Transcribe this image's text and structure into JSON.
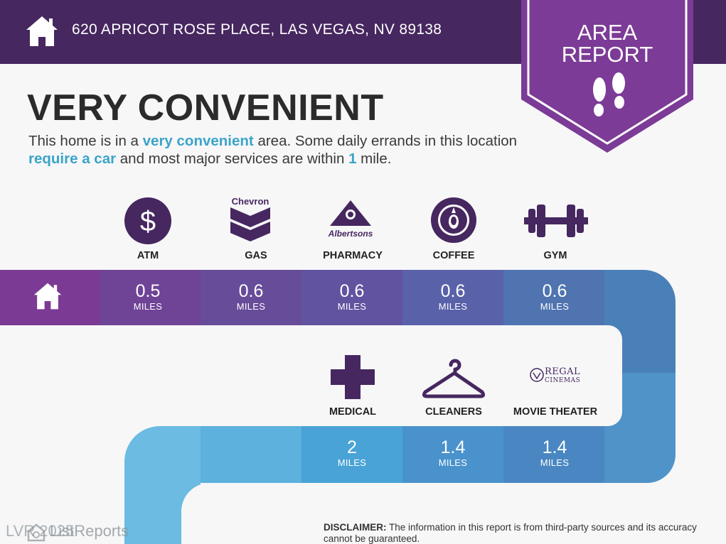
{
  "header": {
    "address": "620 APRICOT ROSE PLACE, LAS VEGAS, NV 89138",
    "badge_line1": "AREA",
    "badge_line2": "REPORT"
  },
  "headline": "VERY CONVENIENT",
  "summary": {
    "p1": "This home is in a ",
    "h1": "very convenient",
    "p2": " area. Some daily errands in this location ",
    "h2": "require a car",
    "p3": " and most major services are within ",
    "h3": "1",
    "p4": " mile."
  },
  "row1": [
    {
      "label": "ATM",
      "brand": "",
      "value": "0.5",
      "unit": "MILES"
    },
    {
      "label": "GAS",
      "brand": "Chevron",
      "value": "0.6",
      "unit": "MILES"
    },
    {
      "label": "PHARMACY",
      "brand": "Albertsons",
      "value": "0.6",
      "unit": "MILES"
    },
    {
      "label": "COFFEE",
      "brand": "",
      "value": "0.6",
      "unit": "MILES"
    },
    {
      "label": "GYM",
      "brand": "",
      "value": "0.6",
      "unit": "MILES"
    }
  ],
  "row2": [
    {
      "label": "MEDICAL",
      "brand": "",
      "value": "2",
      "unit": "MILES"
    },
    {
      "label": "CLEANERS",
      "brand": "",
      "value": "1.4",
      "unit": "MILES"
    },
    {
      "label": "MOVIE THEATER",
      "brand": "REGAL",
      "brand_sub": "CINEMAS",
      "value": "1.4",
      "unit": "MILES"
    }
  ],
  "disclaimer": {
    "label": "DISCLAIMER:",
    "text": " The information in this report is from third-party sources and its accuracy cannot be guaranteed."
  },
  "watermark": {
    "mls": "LVR 2025",
    "brand": "ListReports"
  },
  "colors": {
    "header_bg": "#46275f",
    "badge_purple": "#7c3b96",
    "highlight_blue": "#3aa4c8",
    "band_row1": [
      "#7b3a93",
      "#6f4396",
      "#674c9a",
      "#6153a0",
      "#5961a9",
      "#4f74b0",
      "#4a80b8"
    ],
    "band_row2": [
      "#4f93c9",
      "#58a3d3",
      "#5cb1dd",
      "#49a3d6",
      "#4a92cc",
      "#4a87c2"
    ]
  }
}
